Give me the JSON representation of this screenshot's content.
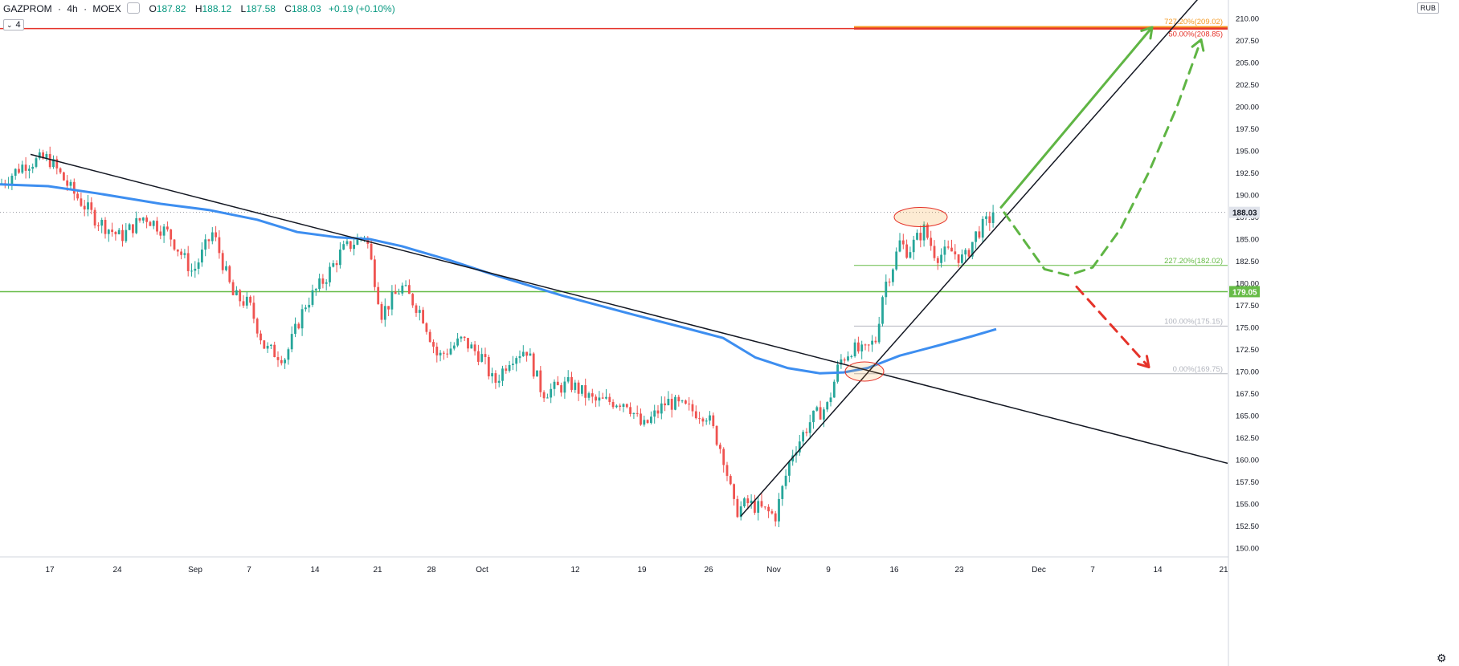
{
  "header": {
    "symbol": "GAZPROM",
    "interval": "4h",
    "exchange": "MOEX",
    "open_label": "O",
    "open": "187.82",
    "high_label": "H",
    "high": "188.12",
    "low_label": "L",
    "low": "187.58",
    "close_label": "C",
    "close": "188.03",
    "change": "+0.19 (+0.10%)"
  },
  "indicator_badge": "4",
  "currency": "RUB",
  "colors": {
    "up": "#26a69a",
    "down": "#ef5350",
    "ma": "#3d8ef0",
    "resistance": "#e5332a",
    "fib_top": "#f59a23",
    "support": "#66bb46",
    "arrow_up": "#5fb544",
    "arrow_down": "#e5332a",
    "trend": "#131722"
  },
  "chart_data": {
    "type": "candlestick",
    "ylim": [
      149,
      212
    ],
    "y_ticks": [
      150,
      152.5,
      155,
      157.5,
      160,
      162.5,
      165,
      167.5,
      170,
      172.5,
      175,
      177.5,
      180,
      182.5,
      185,
      187.5,
      190,
      192.5,
      195,
      197.5,
      200,
      202.5,
      205,
      207.5,
      210
    ],
    "x_ticks": [
      "17",
      "24",
      "Sep",
      "7",
      "14",
      "21",
      "28",
      "Oct",
      "12",
      "19",
      "26",
      "Nov",
      "9",
      "16",
      "23",
      "Dec",
      "7",
      "14",
      "21"
    ],
    "last_price": 188.03,
    "support_level": 179.05,
    "resistance_level": 208.85,
    "fib_levels": [
      {
        "label": "727.20%(209.02)",
        "value": 209.02,
        "color": "#f59a23"
      },
      {
        "label": "50.00%(208.85)",
        "value": 208.85,
        "color": "#e5332a"
      },
      {
        "label": "227.20%(182.02)",
        "value": 182.02,
        "color": "#66bb46"
      },
      {
        "label": "100.00%(175.15)",
        "value": 175.15,
        "color": "#b2b5be"
      },
      {
        "label": "0.00%(169.75)",
        "value": 169.75,
        "color": "#b2b5be"
      }
    ],
    "price_anchors": [
      [
        0,
        191.2
      ],
      [
        30,
        193.5
      ],
      [
        60,
        194.2
      ],
      [
        90,
        190.4
      ],
      [
        120,
        187.2
      ],
      [
        150,
        185.2
      ],
      [
        180,
        187.6
      ],
      [
        210,
        185.6
      ],
      [
        240,
        181.2
      ],
      [
        265,
        185.8
      ],
      [
        290,
        178.6
      ],
      [
        310,
        177.6
      ],
      [
        330,
        172.6
      ],
      [
        355,
        171.6
      ],
      [
        380,
        177.6
      ],
      [
        405,
        180.6
      ],
      [
        425,
        183.6
      ],
      [
        455,
        185.6
      ],
      [
        475,
        176.6
      ],
      [
        500,
        179.6
      ],
      [
        525,
        176.6
      ],
      [
        545,
        171.6
      ],
      [
        575,
        173.6
      ],
      [
        600,
        171.6
      ],
      [
        615,
        168.6
      ],
      [
        635,
        171.6
      ],
      [
        655,
        172.6
      ],
      [
        675,
        167.6
      ],
      [
        710,
        168.6
      ],
      [
        740,
        166.6
      ],
      [
        780,
        166.6
      ],
      [
        800,
        163.6
      ],
      [
        830,
        166.6
      ],
      [
        860,
        165.6
      ],
      [
        880,
        165.1
      ],
      [
        900,
        160.6
      ],
      [
        915,
        154.1
      ],
      [
        930,
        155.1
      ],
      [
        955,
        154.1
      ],
      [
        965,
        153.6
      ],
      [
        985,
        160.6
      ],
      [
        1010,
        164.6
      ],
      [
        1030,
        166.1
      ],
      [
        1045,
        171.1
      ],
      [
        1060,
        172.6
      ],
      [
        1075,
        172.1
      ],
      [
        1090,
        173.6
      ],
      [
        1100,
        179.6
      ],
      [
        1110,
        181.6
      ],
      [
        1120,
        184.6
      ],
      [
        1130,
        183.6
      ],
      [
        1150,
        186.1
      ],
      [
        1165,
        183.1
      ],
      [
        1185,
        183.6
      ],
      [
        1200,
        182.6
      ],
      [
        1215,
        185.6
      ],
      [
        1230,
        187.1
      ],
      [
        1240,
        188.03
      ]
    ],
    "ma_anchors": [
      [
        0,
        191.2
      ],
      [
        60,
        191.0
      ],
      [
        120,
        190.2
      ],
      [
        200,
        189.0
      ],
      [
        260,
        188.3
      ],
      [
        320,
        187.2
      ],
      [
        370,
        185.8
      ],
      [
        420,
        185.2
      ],
      [
        460,
        185.0
      ],
      [
        500,
        184.2
      ],
      [
        560,
        182.6
      ],
      [
        620,
        180.8
      ],
      [
        700,
        178.6
      ],
      [
        790,
        176.4
      ],
      [
        850,
        175.0
      ],
      [
        900,
        173.8
      ],
      [
        940,
        171.6
      ],
      [
        980,
        170.4
      ],
      [
        1020,
        169.8
      ],
      [
        1050,
        169.9
      ],
      [
        1080,
        170.4
      ],
      [
        1120,
        171.8
      ],
      [
        1170,
        173.0
      ],
      [
        1210,
        174.0
      ],
      [
        1240,
        174.8
      ]
    ],
    "trendlines": [
      {
        "x1": 38,
        "y1": 194.6,
        "x2": 1528,
        "y2": 159.6
      },
      {
        "x1": 922,
        "y1": 153.6,
        "x2": 1528,
        "y2": 216.0
      }
    ],
    "arrows": [
      {
        "style": "solid",
        "color": "#5fb544",
        "points": [
          [
            1246,
            188.6
          ],
          [
            1434,
            209.0
          ]
        ]
      },
      {
        "style": "dashed",
        "color": "#5fb544",
        "points": [
          [
            1250,
            188.0
          ],
          [
            1275,
            184.8
          ],
          [
            1300,
            181.6
          ],
          [
            1330,
            180.9
          ],
          [
            1360,
            181.8
          ],
          [
            1395,
            186.2
          ],
          [
            1430,
            192.6
          ],
          [
            1465,
            200.0
          ],
          [
            1495,
            207.6
          ]
        ]
      },
      {
        "style": "dashed",
        "color": "#e5332a",
        "points": [
          [
            1340,
            179.6
          ],
          [
            1430,
            170.5
          ]
        ]
      }
    ],
    "ellipses": [
      {
        "cx": 1146,
        "cy": 187.5,
        "rx": 33,
        "ry": 12,
        "fill": "rgba(245,154,35,0.2)",
        "stroke": "#e5332a"
      },
      {
        "cx": 1076,
        "cy": 170.0,
        "rx": 24,
        "ry": 12,
        "fill": "rgba(245,154,35,0.15)",
        "stroke": "#e5332a"
      }
    ]
  }
}
